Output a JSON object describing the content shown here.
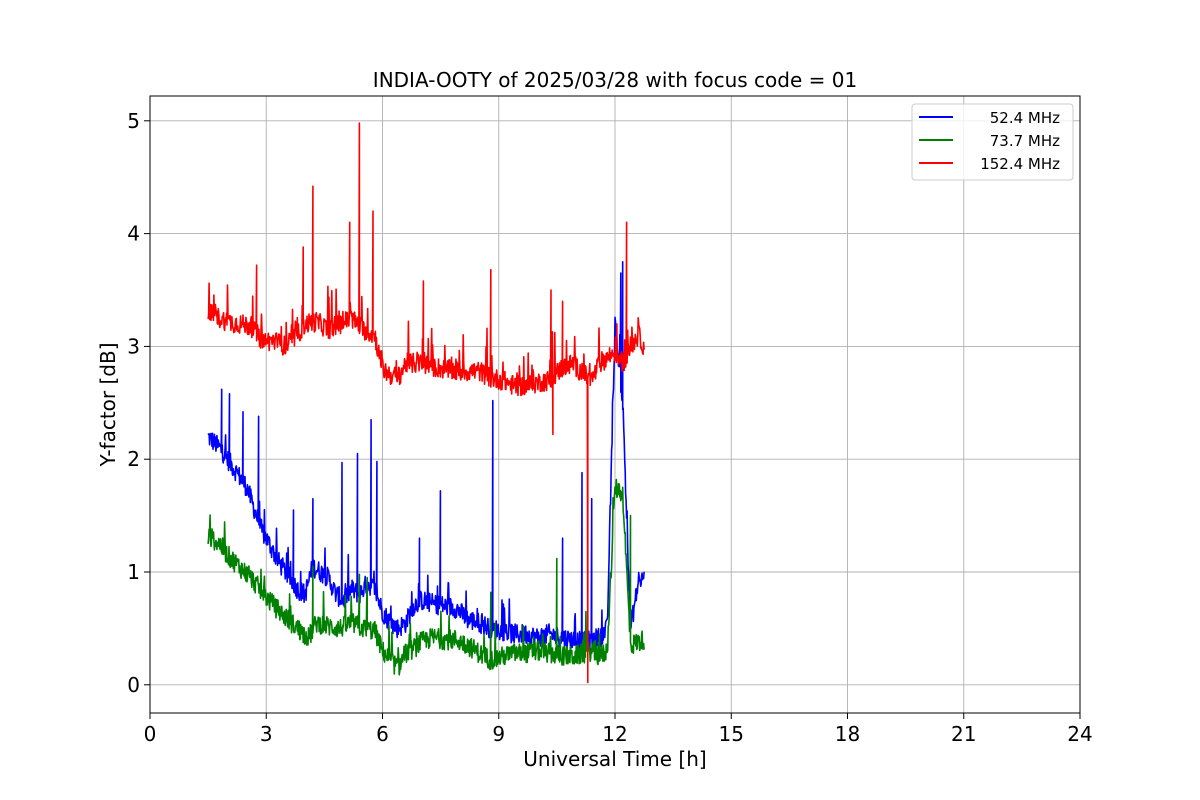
{
  "chart_data": {
    "type": "line",
    "title": "INDIA-OOTY of 2025/03/28 with focus code = 01",
    "xlabel": "Universal Time [h]",
    "ylabel": "Y-factor [dB]",
    "xlim": [
      0,
      24
    ],
    "ylim": [
      -0.25,
      5.22
    ],
    "x_ticks": [
      0,
      3,
      6,
      9,
      12,
      15,
      18,
      21,
      24
    ],
    "y_ticks": [
      0,
      1,
      2,
      3,
      4,
      5
    ],
    "x_tick_labels": [
      "0",
      "3",
      "6",
      "9",
      "12",
      "15",
      "18",
      "21",
      "24"
    ],
    "y_tick_labels": [
      "0",
      "1",
      "2",
      "3",
      "4",
      "5"
    ],
    "grid": true,
    "legend_position": "top-right",
    "series": [
      {
        "name": "52.4 MHz",
        "color": "#0000ff",
        "x": [
          1.5,
          1.8,
          2.0,
          2.2,
          2.5,
          2.7,
          2.9,
          3.0,
          3.3,
          3.6,
          3.8,
          4.0,
          4.2,
          4.4,
          4.6,
          4.8,
          5.0,
          5.2,
          5.4,
          5.6,
          5.8,
          6.0,
          6.2,
          6.4,
          6.6,
          6.8,
          7.0,
          7.3,
          7.6,
          7.9,
          8.2,
          8.5,
          8.8,
          9.1,
          9.4,
          9.7,
          10.0,
          10.3,
          10.6,
          10.9,
          11.2,
          11.4,
          11.6,
          11.8,
          12.0,
          12.2,
          12.4,
          12.6,
          12.75
        ],
        "y": [
          2.2,
          2.1,
          2.0,
          1.9,
          1.75,
          1.55,
          1.35,
          1.3,
          1.1,
          0.95,
          0.85,
          0.8,
          1.05,
          1.0,
          0.95,
          0.8,
          0.75,
          0.85,
          0.8,
          0.9,
          0.85,
          0.65,
          0.55,
          0.5,
          0.55,
          0.7,
          0.75,
          0.72,
          0.7,
          0.68,
          0.58,
          0.55,
          0.5,
          0.48,
          0.45,
          0.45,
          0.42,
          0.45,
          0.42,
          0.4,
          0.38,
          0.4,
          0.42,
          0.5,
          3.2,
          2.5,
          0.5,
          0.9,
          0.95
        ],
        "spikes": [
          [
            1.85,
            2.62
          ],
          [
            2.05,
            2.58
          ],
          [
            2.4,
            2.42
          ],
          [
            2.8,
            2.38
          ],
          [
            3.7,
            1.55
          ],
          [
            4.2,
            1.65
          ],
          [
            4.95,
            1.97
          ],
          [
            5.35,
            2.05
          ],
          [
            5.7,
            2.35
          ],
          [
            5.85,
            1.98
          ],
          [
            6.95,
            1.3
          ],
          [
            7.5,
            1.72
          ],
          [
            8.85,
            2.52
          ],
          [
            10.65,
            1.3
          ],
          [
            11.15,
            1.88
          ],
          [
            11.4,
            1.65
          ],
          [
            12.15,
            3.65
          ],
          [
            12.2,
            3.75
          ]
        ]
      },
      {
        "name": "73.7 MHz",
        "color": "#008000",
        "x": [
          1.5,
          1.8,
          2.0,
          2.3,
          2.6,
          2.9,
          3.2,
          3.5,
          3.8,
          4.1,
          4.3,
          4.6,
          4.9,
          5.2,
          5.5,
          5.8,
          6.0,
          6.2,
          6.4,
          6.6,
          6.8,
          7.0,
          7.3,
          7.6,
          7.9,
          8.2,
          8.5,
          8.8,
          9.1,
          9.4,
          9.7,
          10.0,
          10.3,
          10.6,
          10.9,
          11.2,
          11.4,
          11.6,
          11.8,
          12.0,
          12.2,
          12.4,
          12.6,
          12.75
        ],
        "y": [
          1.32,
          1.25,
          1.15,
          1.05,
          0.95,
          0.82,
          0.7,
          0.6,
          0.5,
          0.42,
          0.55,
          0.52,
          0.5,
          0.55,
          0.5,
          0.48,
          0.3,
          0.22,
          0.15,
          0.28,
          0.32,
          0.38,
          0.42,
          0.4,
          0.4,
          0.35,
          0.28,
          0.22,
          0.25,
          0.28,
          0.28,
          0.3,
          0.28,
          0.26,
          0.25,
          0.28,
          0.3,
          0.25,
          0.3,
          1.75,
          1.7,
          0.35,
          0.38,
          0.4
        ],
        "spikes": [
          [
            4.2,
            1.05
          ],
          [
            5.4,
            0.98
          ],
          [
            5.6,
            0.95
          ],
          [
            8.8,
            0.82
          ],
          [
            10.5,
            1.12
          ],
          [
            11.2,
            0.45
          ],
          [
            11.6,
            0.45
          ],
          [
            12.4,
            1.5
          ]
        ]
      },
      {
        "name": "152.4 MHz",
        "color": "#ff0000",
        "x": [
          1.5,
          1.8,
          2.0,
          2.3,
          2.6,
          2.9,
          3.2,
          3.5,
          3.8,
          4.0,
          4.3,
          4.6,
          4.9,
          5.2,
          5.5,
          5.8,
          6.0,
          6.2,
          6.4,
          6.6,
          6.8,
          7.0,
          7.3,
          7.6,
          7.9,
          8.2,
          8.5,
          8.8,
          9.1,
          9.4,
          9.7,
          10.0,
          10.3,
          10.6,
          10.9,
          11.2,
          11.4,
          11.6,
          11.8,
          12.0,
          12.2,
          12.4,
          12.6,
          12.75
        ],
        "y": [
          3.3,
          3.25,
          3.22,
          3.2,
          3.18,
          3.05,
          3.05,
          3.0,
          3.1,
          3.2,
          3.22,
          3.15,
          3.2,
          3.25,
          3.15,
          3.1,
          2.8,
          2.75,
          2.72,
          2.85,
          2.85,
          2.85,
          2.82,
          2.8,
          2.78,
          2.78,
          2.78,
          2.72,
          2.7,
          2.65,
          2.65,
          2.68,
          2.7,
          2.8,
          2.85,
          2.75,
          2.7,
          2.85,
          2.9,
          2.95,
          2.85,
          3.0,
          3.1,
          3.0
        ],
        "spikes": [
          [
            2.75,
            3.72
          ],
          [
            3.95,
            3.88
          ],
          [
            4.2,
            4.42
          ],
          [
            5.15,
            4.1
          ],
          [
            5.4,
            4.98
          ],
          [
            5.75,
            4.2
          ],
          [
            7.05,
            3.58
          ],
          [
            8.8,
            3.68
          ],
          [
            10.35,
            3.5
          ],
          [
            10.4,
            2.22
          ],
          [
            10.65,
            3.4
          ],
          [
            11.3,
            0.02
          ],
          [
            12.05,
            3.2
          ],
          [
            12.3,
            4.1
          ]
        ]
      }
    ]
  }
}
